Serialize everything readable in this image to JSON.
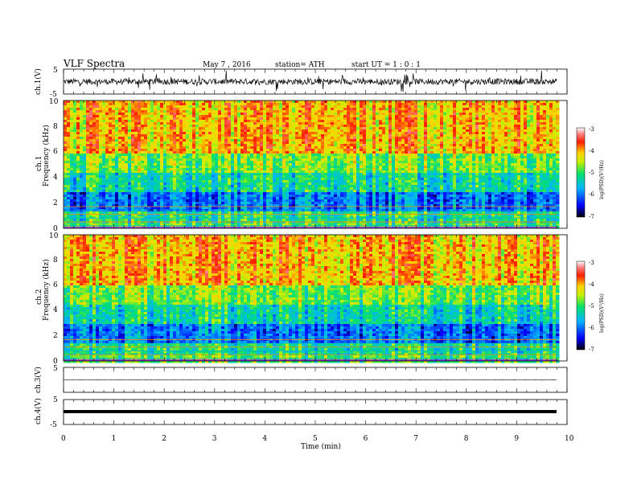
{
  "header": {
    "title": "VLF  Spectra",
    "date": "May 7  , 2016",
    "station": "station= ATH",
    "start": "start  UT =   1 : 0  : 1"
  },
  "chart_data": [
    {
      "type": "line",
      "panel": "ch1-waveform",
      "ylabel": "ch.1(V)",
      "ylim": [
        -5,
        5
      ],
      "yticks": [
        "5",
        "-5"
      ],
      "xlim": [
        0,
        10
      ],
      "series": [
        {
          "baseline": 0,
          "amplitude_typical": 1.2,
          "x_end": 9.8
        }
      ],
      "color": "#000000"
    },
    {
      "type": "heatmap",
      "panel": "ch1-spectrogram",
      "ylabel": "ch.1",
      "ylabel2": "Frequency  (kHz)",
      "ylim": [
        0,
        10
      ],
      "yticks": [
        "0",
        "2",
        "4",
        "6",
        "8",
        "10"
      ],
      "xlim": [
        0,
        10
      ],
      "x_end": 9.8,
      "colorbar": {
        "label": "log(PSD)(V²/Hz)",
        "range": [
          -7,
          -3
        ],
        "ticks": [
          "-3",
          "-4",
          "-5",
          "-6",
          "-7"
        ]
      }
    },
    {
      "type": "heatmap",
      "panel": "ch2-spectrogram",
      "ylabel": "ch.2",
      "ylabel2": "Frequency  (kHz)",
      "ylim": [
        0,
        10
      ],
      "yticks": [
        "0",
        "2",
        "4",
        "6",
        "8",
        "10"
      ],
      "xlim": [
        0,
        10
      ],
      "x_end": 9.8,
      "colorbar": {
        "label": "log(PSD)(V²/Hz)",
        "range": [
          -7,
          -3
        ],
        "ticks": [
          "-3",
          "-4",
          "-5",
          "-6",
          "-7"
        ]
      }
    },
    {
      "type": "line",
      "panel": "ch3-waveform",
      "ylabel": "ch.3(V)",
      "ylim": [
        -5,
        5
      ],
      "yticks": [
        "5"
      ],
      "xlim": [
        0,
        10
      ],
      "series": [
        {
          "baseline": 0,
          "amplitude_typical": 0.05,
          "x_end": 9.8
        }
      ]
    },
    {
      "type": "line",
      "panel": "ch4-waveform",
      "ylabel": "ch.4(V)",
      "ylim": [
        -5,
        5
      ],
      "yticks": [
        "5",
        "-5"
      ],
      "xlim": [
        0,
        10
      ],
      "series": [
        {
          "baseline": 0,
          "amplitude_typical": 0.3,
          "x_end": 9.8
        }
      ],
      "xlabel": "Time  (min)",
      "xticks": [
        "0",
        "1",
        "2",
        "3",
        "4",
        "5",
        "6",
        "7",
        "8",
        "9",
        "10"
      ]
    }
  ]
}
